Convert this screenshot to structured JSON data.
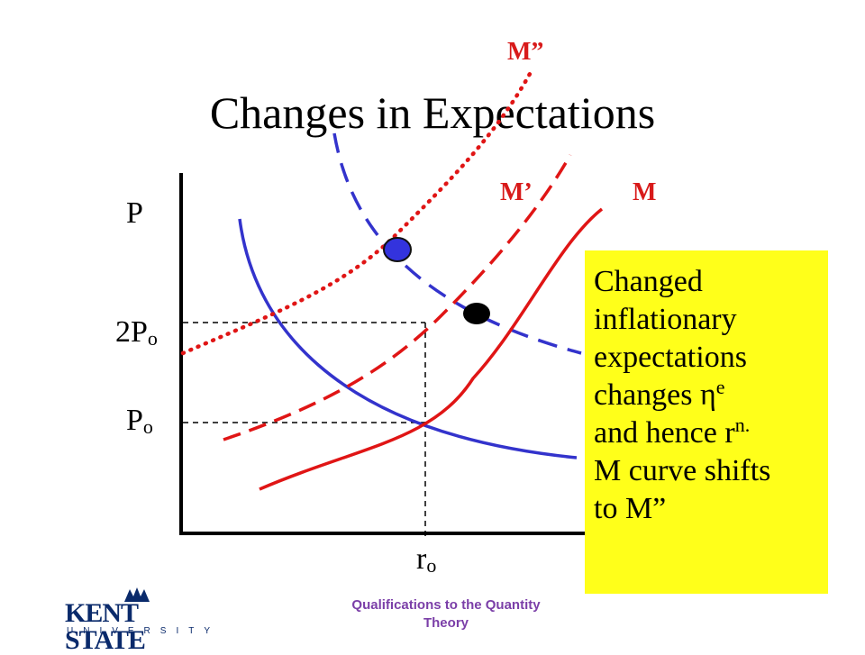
{
  "title": "Changes in Expectations",
  "axis": {
    "y_label": "P"
  },
  "ticks": {
    "p2": {
      "main": "2P",
      "sub": "o"
    },
    "p0": {
      "main": "P",
      "sub": "o"
    },
    "r0": {
      "main": "r",
      "sub": "o"
    }
  },
  "curves": {
    "m": "M",
    "m_prime": "M’",
    "m_double": "M”"
  },
  "note": {
    "line1": "Changed",
    "line2": "inflationary",
    "line3": "expectations",
    "line4_text": "changes η",
    "line4_sup": "e",
    "line5_text": "and hence r",
    "line5_sup": "n.",
    "line6": "M curve shifts",
    "line7": "to M”"
  },
  "footer": {
    "line1": "Qualifications to the Quantity",
    "line2": "Theory"
  },
  "logo": {
    "word": "KENT STATE",
    "sub": "UNIVERSITY"
  },
  "colors": {
    "red_curve": "#e01515",
    "blue_curve": "#3333cc",
    "note_bg": "#ffff1a",
    "footer_text": "#7b3fa8",
    "logo": "#0a2a6b"
  }
}
